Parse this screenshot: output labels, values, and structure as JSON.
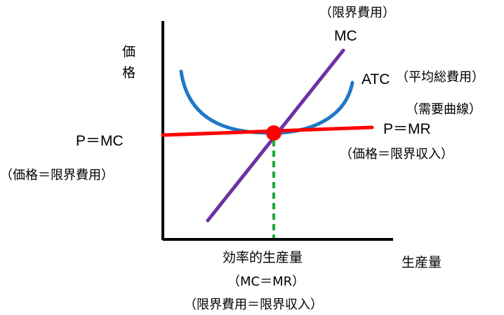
{
  "axes": {
    "y_label_chars": [
      "価",
      "格"
    ],
    "x_label": "生産量"
  },
  "curves": {
    "mc": {
      "note": "（限界費用）",
      "label": "MC",
      "color": "#7030a0"
    },
    "atc": {
      "note": "（平均総費用）",
      "label": "ATC",
      "color": "#1f78c8"
    },
    "demand": {
      "note": "（需要曲線）",
      "label": "P＝MR",
      "sub": "（価格＝限界収入）",
      "color": "#ff0000"
    }
  },
  "left_annotation": {
    "label": "P＝MC",
    "sub": "（価格＝限界費用）"
  },
  "equilibrium": {
    "point_color": "#ff0000",
    "drop_line_color": "#1aaa3a",
    "label": "効率的生産量",
    "sub1": "（MC＝MR）",
    "sub2": "（限界費用＝限界収入）"
  }
}
